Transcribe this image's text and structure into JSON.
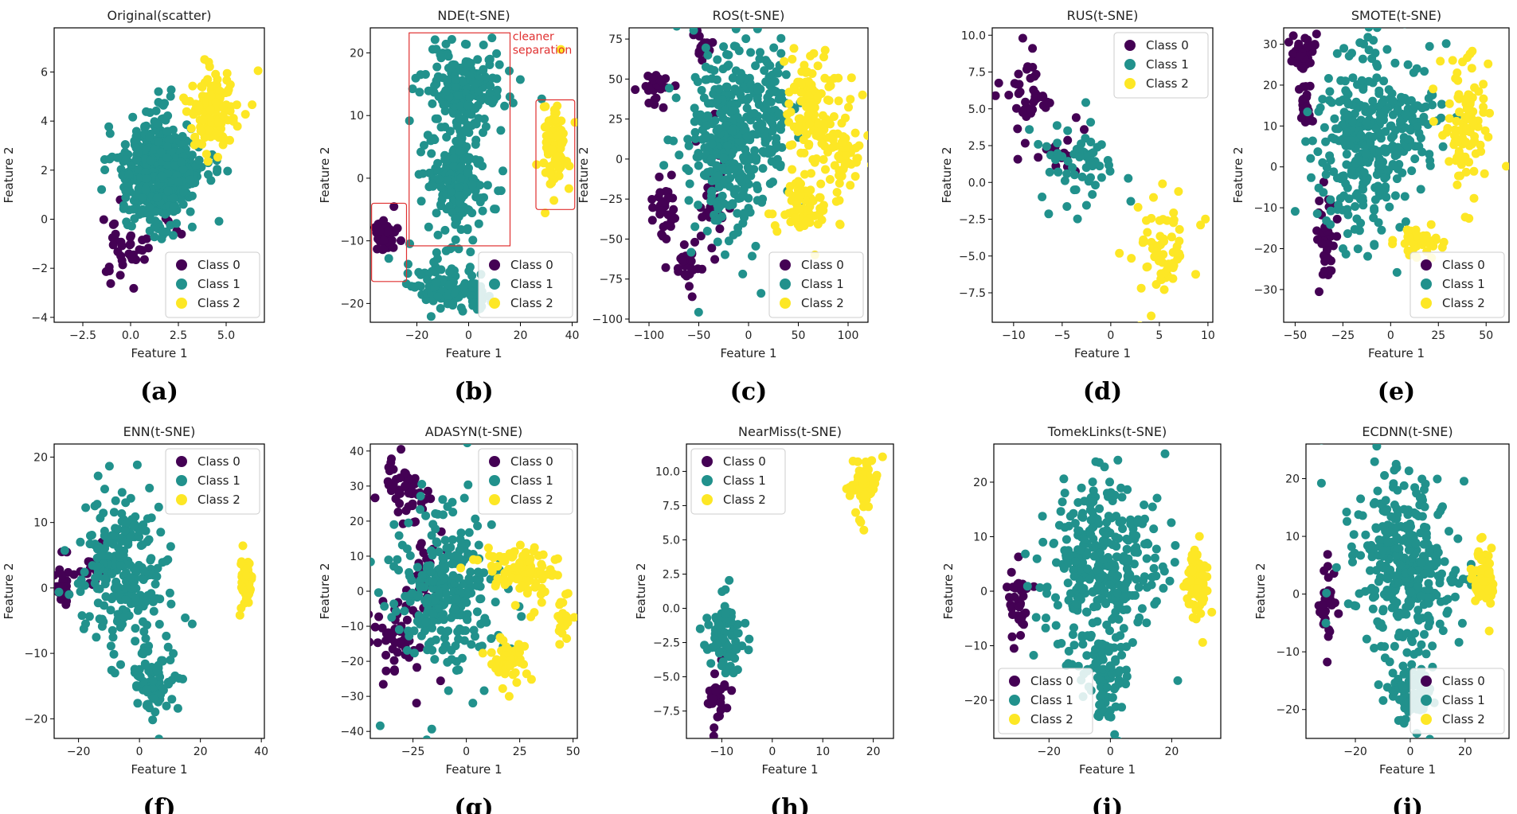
{
  "colors": {
    "class0": "#440154",
    "class1": "#21918c",
    "class2": "#fde725",
    "annotation": "#e03030"
  },
  "legend_labels": [
    "Class 0",
    "Class 1",
    "Class 2"
  ],
  "chart_data": [
    {
      "type": "scatter",
      "panel": "(a)",
      "title": "Original(scatter)",
      "xlabel": "Feature 1",
      "ylabel": "Feature 2",
      "xlim": [
        -4,
        7
      ],
      "ylim": [
        -4.2,
        7.8
      ],
      "xticks": [
        -2.5,
        0,
        2.5,
        5
      ],
      "xtick_labels": [
        "−2.5",
        "0.0",
        "2.5",
        "5.0"
      ],
      "yticks": [
        -4,
        -2,
        0,
        2,
        4,
        6
      ],
      "ytick_labels": [
        "−4",
        "−2",
        "0",
        "2",
        "4",
        "6"
      ],
      "legend": "lower-right",
      "clusters": [
        {
          "cls": 0,
          "cx": 0,
          "cy": -1,
          "sx": 1.3,
          "sy": 0.9,
          "n": 40
        },
        {
          "cls": 1,
          "cx": 1.5,
          "cy": 2,
          "sx": 1.3,
          "sy": 1.4,
          "n": 520
        },
        {
          "cls": 2,
          "cx": 4.3,
          "cy": 4.5,
          "sx": 1,
          "sy": 1.1,
          "n": 130
        }
      ]
    },
    {
      "type": "scatter",
      "panel": "(b)",
      "title": "NDE(t-SNE)",
      "xlabel": "Feature 1",
      "ylabel": "Feature 2",
      "xlim": [
        -38,
        42
      ],
      "ylim": [
        -23,
        24
      ],
      "xticks": [
        -20,
        0,
        20,
        40
      ],
      "xtick_labels": [
        "−20",
        "0",
        "20",
        "40"
      ],
      "yticks": [
        -20,
        -10,
        0,
        10,
        20
      ],
      "ytick_labels": [
        "−20",
        "−10",
        "0",
        "10",
        "20"
      ],
      "legend": "lower-right",
      "annotation": "cleaner separation",
      "clusters": [
        {
          "cls": 0,
          "cx": -32,
          "cy": -9,
          "sx": 3,
          "sy": 2,
          "n": 40
        },
        {
          "cls": 1,
          "cx": -2,
          "cy": 14,
          "sx": 10,
          "sy": 5,
          "n": 200
        },
        {
          "cls": 1,
          "cx": -5,
          "cy": 0,
          "sx": 8,
          "sy": 6,
          "n": 180
        },
        {
          "cls": 1,
          "cx": -10,
          "cy": -17,
          "sx": 9,
          "sy": 3,
          "n": 100
        },
        {
          "cls": 1,
          "cx": 4,
          "cy": -19,
          "sx": 2,
          "sy": 2,
          "n": 30
        },
        {
          "cls": 2,
          "cx": 33,
          "cy": 5,
          "sx": 3,
          "sy": 5,
          "n": 90
        }
      ]
    },
    {
      "type": "scatter",
      "panel": "(c)",
      "title": "ROS(t-SNE)",
      "xlabel": "Feature 1",
      "ylabel": "Feature 2",
      "xlim": [
        -120,
        120
      ],
      "ylim": [
        -102,
        82
      ],
      "xticks": [
        -100,
        -50,
        0,
        50,
        100
      ],
      "xtick_labels": [
        "−100",
        "−50",
        "0",
        "50",
        "100"
      ],
      "yticks": [
        -100,
        -75,
        -50,
        -25,
        0,
        25,
        50,
        75
      ],
      "ytick_labels": [
        "−100",
        "−75",
        "−50",
        "−25",
        "0",
        "25",
        "50",
        "75"
      ],
      "legend": "lower-right",
      "clusters": [
        {
          "cls": 0,
          "cx": -95,
          "cy": 45,
          "sx": 10,
          "sy": 8,
          "n": 25
        },
        {
          "cls": 0,
          "cx": -85,
          "cy": -30,
          "sx": 10,
          "sy": 12,
          "n": 30
        },
        {
          "cls": 0,
          "cx": -60,
          "cy": -65,
          "sx": 8,
          "sy": 10,
          "n": 25
        },
        {
          "cls": 0,
          "cx": -45,
          "cy": 70,
          "sx": 6,
          "sy": 6,
          "n": 15
        },
        {
          "cls": 0,
          "cx": -35,
          "cy": -25,
          "sx": 10,
          "sy": 25,
          "n": 40
        },
        {
          "cls": 1,
          "cx": -20,
          "cy": 10,
          "sx": 30,
          "sy": 40,
          "n": 350
        },
        {
          "cls": 1,
          "cx": 20,
          "cy": 30,
          "sx": 15,
          "sy": 25,
          "n": 80
        },
        {
          "cls": 2,
          "cx": 65,
          "cy": 35,
          "sx": 18,
          "sy": 25,
          "n": 120
        },
        {
          "cls": 2,
          "cx": 55,
          "cy": -30,
          "sx": 20,
          "sy": 12,
          "n": 70
        },
        {
          "cls": 2,
          "cx": 95,
          "cy": 5,
          "sx": 10,
          "sy": 12,
          "n": 50
        }
      ]
    },
    {
      "type": "scatter",
      "panel": "(d)",
      "title": "RUS(t-SNE)",
      "xlabel": "Feature 1",
      "ylabel": "Feature 2",
      "xlim": [
        -12.2,
        10.5
      ],
      "ylim": [
        -9.5,
        10.5
      ],
      "xticks": [
        -10,
        -5,
        0,
        5,
        10
      ],
      "xtick_labels": [
        "−10",
        "−5",
        "0",
        "5",
        "10"
      ],
      "yticks": [
        -7.5,
        -5,
        -2.5,
        0,
        2.5,
        5,
        7.5,
        10
      ],
      "ytick_labels": [
        "−7.5",
        "−5.0",
        "−2.5",
        "0.0",
        "2.5",
        "5.0",
        "7.5",
        "10.0"
      ],
      "legend": "top-right",
      "clusters": [
        {
          "cls": 0,
          "cx": -8.5,
          "cy": 6,
          "sx": 1.6,
          "sy": 2,
          "n": 45
        },
        {
          "cls": 0,
          "cx": -4.5,
          "cy": 2,
          "sx": 1.8,
          "sy": 1.5,
          "n": 15
        },
        {
          "cls": 1,
          "cx": -3,
          "cy": 1.5,
          "sx": 3,
          "sy": 2,
          "n": 60
        },
        {
          "cls": 2,
          "cx": 5.5,
          "cy": -4.5,
          "sx": 2,
          "sy": 2.2,
          "n": 70
        }
      ]
    },
    {
      "type": "scatter",
      "panel": "(e)",
      "title": "SMOTE(t-SNE)",
      "xlabel": "Feature 1",
      "ylabel": "Feature 2",
      "xlim": [
        -56,
        62
      ],
      "ylim": [
        -38,
        34
      ],
      "xticks": [
        -50,
        -25,
        0,
        25,
        50
      ],
      "xtick_labels": [
        "−50",
        "−25",
        "0",
        "25",
        "50"
      ],
      "yticks": [
        -30,
        -20,
        -10,
        0,
        10,
        20,
        30
      ],
      "ytick_labels": [
        "−30",
        "−20",
        "−10",
        "0",
        "10",
        "20",
        "30"
      ],
      "legend": "lower-right",
      "clusters": [
        {
          "cls": 0,
          "cx": -45,
          "cy": 28,
          "sx": 5,
          "sy": 3,
          "n": 40
        },
        {
          "cls": 0,
          "cx": -45,
          "cy": 15,
          "sx": 2,
          "sy": 5,
          "n": 30
        },
        {
          "cls": 0,
          "cx": -33,
          "cy": -20,
          "sx": 3,
          "sy": 8,
          "n": 40
        },
        {
          "cls": 1,
          "cx": -15,
          "cy": 5,
          "sx": 15,
          "sy": 15,
          "n": 300
        },
        {
          "cls": 1,
          "cx": 10,
          "cy": 12,
          "sx": 12,
          "sy": 8,
          "n": 80
        },
        {
          "cls": 2,
          "cx": 40,
          "cy": 10,
          "sx": 8,
          "sy": 12,
          "n": 100
        },
        {
          "cls": 2,
          "cx": 15,
          "cy": -18,
          "sx": 8,
          "sy": 3,
          "n": 40
        }
      ]
    },
    {
      "type": "scatter",
      "panel": "(f)",
      "title": "ENN(t-SNE)",
      "xlabel": "Feature 1",
      "ylabel": "Feature 2",
      "xlim": [
        -28,
        41
      ],
      "ylim": [
        -23,
        22
      ],
      "xticks": [
        -20,
        0,
        20,
        40
      ],
      "xtick_labels": [
        "−20",
        "0",
        "20",
        "40"
      ],
      "yticks": [
        -20,
        -10,
        0,
        10,
        20
      ],
      "ytick_labels": [
        "−20",
        "−10",
        "0",
        "10",
        "20"
      ],
      "legend": "top-right",
      "clusters": [
        {
          "cls": 0,
          "cx": -24,
          "cy": 0,
          "sx": 2,
          "sy": 3,
          "n": 30
        },
        {
          "cls": 0,
          "cx": -15,
          "cy": 3,
          "sx": 3,
          "sy": 3,
          "n": 15
        },
        {
          "cls": 1,
          "cx": -5,
          "cy": 3,
          "sx": 9,
          "sy": 8,
          "n": 250
        },
        {
          "cls": 1,
          "cx": 5,
          "cy": -15,
          "sx": 5,
          "sy": 4,
          "n": 80
        },
        {
          "cls": 2,
          "cx": 35,
          "cy": 1,
          "sx": 1.3,
          "sy": 2.5,
          "n": 60
        }
      ]
    },
    {
      "type": "scatter",
      "panel": "(g)",
      "title": "ADASYN(t-SNE)",
      "xlabel": "Feature 1",
      "ylabel": "Feature 2",
      "xlim": [
        -45,
        52
      ],
      "ylim": [
        -42,
        42
      ],
      "xticks": [
        -25,
        0,
        25,
        50
      ],
      "xtick_labels": [
        "−25",
        "0",
        "25",
        "50"
      ],
      "yticks": [
        -40,
        -30,
        -20,
        -10,
        0,
        10,
        20,
        30,
        40
      ],
      "ytick_labels": [
        "−40",
        "−30",
        "−20",
        "−10",
        "0",
        "10",
        "20",
        "30",
        "40"
      ],
      "legend": "top-right",
      "clusters": [
        {
          "cls": 0,
          "cx": -28,
          "cy": 30,
          "sx": 8,
          "sy": 6,
          "n": 50
        },
        {
          "cls": 0,
          "cx": -30,
          "cy": -15,
          "sx": 8,
          "sy": 8,
          "n": 50
        },
        {
          "cls": 0,
          "cx": -20,
          "cy": 5,
          "sx": 6,
          "sy": 8,
          "n": 30
        },
        {
          "cls": 1,
          "cx": -10,
          "cy": 0,
          "sx": 15,
          "sy": 15,
          "n": 280
        },
        {
          "cls": 2,
          "cx": 25,
          "cy": 7,
          "sx": 12,
          "sy": 6,
          "n": 100
        },
        {
          "cls": 2,
          "cx": 20,
          "cy": -20,
          "sx": 6,
          "sy": 5,
          "n": 60
        },
        {
          "cls": 2,
          "cx": 45,
          "cy": -8,
          "sx": 3,
          "sy": 5,
          "n": 20
        }
      ]
    },
    {
      "type": "scatter",
      "panel": "(h)",
      "title": "NearMiss(t-SNE)",
      "xlabel": "Feature 1",
      "ylabel": "Feature 2",
      "xlim": [
        -17,
        24
      ],
      "ylim": [
        -9.5,
        12
      ],
      "xticks": [
        -10,
        0,
        10,
        20
      ],
      "xtick_labels": [
        "−10",
        "0",
        "10",
        "20"
      ],
      "yticks": [
        -7.5,
        -5,
        -2.5,
        0,
        2.5,
        5,
        7.5,
        10
      ],
      "ytick_labels": [
        "−7.5",
        "−5.0",
        "−2.5",
        "0.0",
        "2.5",
        "5.0",
        "7.5",
        "10.0"
      ],
      "legend": "top-left",
      "clusters": [
        {
          "cls": 0,
          "cx": -11,
          "cy": -6.5,
          "sx": 1.5,
          "sy": 1.8,
          "n": 30
        },
        {
          "cls": 1,
          "cx": -9,
          "cy": -2,
          "sx": 2.5,
          "sy": 1.8,
          "n": 80
        },
        {
          "cls": 2,
          "cx": 18,
          "cy": 9,
          "sx": 1.5,
          "sy": 1.2,
          "n": 70
        }
      ]
    },
    {
      "type": "scatter",
      "panel": "(i)",
      "title": "TomekLinks(t-SNE)",
      "xlabel": "Feature 1",
      "ylabel": "Feature 2",
      "xlim": [
        -38,
        36
      ],
      "ylim": [
        -27,
        27
      ],
      "xticks": [
        -20,
        0,
        20
      ],
      "xtick_labels": [
        "−20",
        "0",
        "20"
      ],
      "yticks": [
        -20,
        -10,
        0,
        10,
        20
      ],
      "ytick_labels": [
        "−20",
        "−10",
        "0",
        "10",
        "20"
      ],
      "legend": "lower-left",
      "clusters": [
        {
          "cls": 0,
          "cx": -30,
          "cy": -2,
          "sx": 2.5,
          "sy": 4,
          "n": 35
        },
        {
          "cls": 1,
          "cx": -3,
          "cy": 4,
          "sx": 12,
          "sy": 11,
          "n": 350
        },
        {
          "cls": 1,
          "cx": -2,
          "cy": -16,
          "sx": 5,
          "sy": 5,
          "n": 80
        },
        {
          "cls": 2,
          "cx": 28,
          "cy": 1,
          "sx": 2.5,
          "sy": 4,
          "n": 80
        }
      ]
    },
    {
      "type": "scatter",
      "panel": "(j)",
      "title": "ECDNN(t-SNE)",
      "xlabel": "Feature 1",
      "ylabel": "Feature 2",
      "xlim": [
        -38,
        36
      ],
      "ylim": [
        -25,
        26
      ],
      "xticks": [
        -20,
        0,
        20
      ],
      "xtick_labels": [
        "−20",
        "0",
        "20"
      ],
      "yticks": [
        -20,
        -10,
        0,
        10,
        20
      ],
      "ytick_labels": [
        "−20",
        "−10",
        "0",
        "10",
        "20"
      ],
      "legend": "lower-right",
      "clusters": [
        {
          "cls": 0,
          "cx": -30,
          "cy": -2,
          "sx": 2,
          "sy": 4,
          "n": 35
        },
        {
          "cls": 1,
          "cx": -2,
          "cy": 5,
          "sx": 12,
          "sy": 10,
          "n": 350
        },
        {
          "cls": 1,
          "cx": 0,
          "cy": -17,
          "sx": 5,
          "sy": 4,
          "n": 80
        },
        {
          "cls": 2,
          "cx": 27,
          "cy": 2,
          "sx": 2.5,
          "sy": 4,
          "n": 80
        }
      ]
    }
  ]
}
